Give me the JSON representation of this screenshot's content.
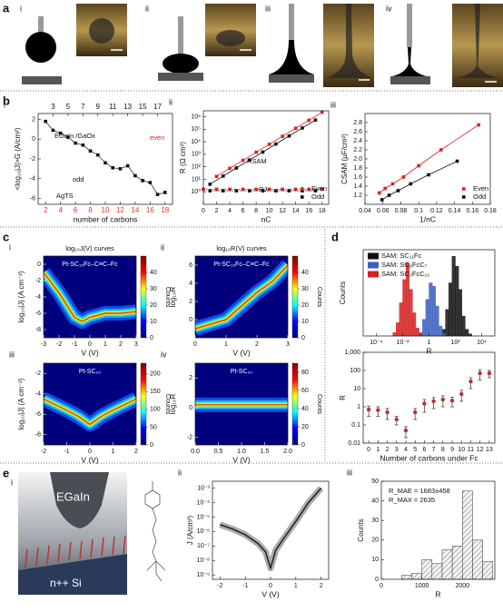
{
  "panels": {
    "a": {
      "label": "a",
      "sub": [
        "i",
        "ii",
        "iii",
        "iv"
      ]
    },
    "b": {
      "label": "b"
    },
    "c": {
      "label": "c"
    },
    "d": {
      "label": "d"
    },
    "e": {
      "label": "e",
      "sub": "i",
      "schematic": [
        "EGaIn",
        "n++ Si"
      ]
    }
  },
  "chart_data": [
    {
      "type": "line",
      "panel": "i",
      "xlabel": "number of carbons",
      "ylabel": "<log₁₀|J|>G (A/cm²)",
      "xlim": [
        1,
        19
      ],
      "ylim": [
        -6.6,
        2.6
      ],
      "xticks": [
        2,
        4,
        6,
        8,
        10,
        12,
        14,
        16,
        18
      ],
      "xtick_color": "#e0302a",
      "x2ticks": [
        3,
        5,
        7,
        9,
        11,
        13,
        15,
        17
      ],
      "yticks": [
        2,
        0,
        -2,
        -4,
        -6
      ],
      "series": [
        {
          "color": "#333333",
          "x": [
            2,
            3,
            4,
            5,
            6,
            7,
            8,
            9,
            10,
            11,
            12,
            13,
            14,
            15,
            16,
            17,
            18
          ],
          "values": [
            1.8,
            0.9,
            0.6,
            0.2,
            -0.4,
            -0.6,
            -1.2,
            -1.6,
            -2.4,
            -2.9,
            -3.0,
            -2.7,
            -3.7,
            -4.2,
            -4.4,
            -5.6,
            -5.4
          ]
        }
      ],
      "annotations": [
        "EGaIn /GaOx",
        "even",
        "odd",
        "AgTS"
      ]
    },
    {
      "type": "line",
      "panel": "ii",
      "xlabel": "nC",
      "ylabel": "R (Ω cm²)",
      "ylog": true,
      "xlim": [
        0,
        19
      ],
      "ylim": [
        0.1,
        3000000
      ],
      "xticks": [
        0,
        2,
        4,
        6,
        8,
        10,
        12,
        14,
        16,
        18
      ],
      "yticks": [
        {
          "value": 1,
          "label": "10⁰"
        },
        {
          "value": 10,
          "label": "10¹"
        },
        {
          "value": 100,
          "label": "10²"
        },
        {
          "value": 1000,
          "label": "10³"
        },
        {
          "value": 10000,
          "label": "10⁴"
        },
        {
          "value": 100000,
          "label": "10⁵"
        },
        {
          "value": 1000000,
          "label": "10⁶"
        }
      ],
      "legend": "lower right",
      "series": [
        {
          "name": "Even",
          "color": "#e02020",
          "x": [
            2,
            4,
            6,
            8,
            10,
            12,
            14,
            16,
            18
          ],
          "values": [
            17,
            76,
            330,
            1450,
            6300,
            27500,
            120000,
            525000,
            2300000
          ]
        },
        {
          "name": "Odd",
          "color": "#111111",
          "x": [
            1,
            3,
            5,
            7,
            9,
            11,
            13,
            15,
            17
          ],
          "values": [
            4,
            18,
            80,
            350,
            1500,
            6600,
            29000,
            126000,
            550000
          ]
        },
        {
          "color": "#e02020",
          "x": [
            0,
            2,
            4,
            6,
            8,
            10,
            12,
            14,
            16,
            18
          ],
          "values": [
            1.6,
            1.6,
            1.6,
            1.6,
            1.6,
            1.6,
            1.6,
            1.6,
            1.6,
            1.6
          ]
        },
        {
          "color": "#111111",
          "x": [
            1,
            3,
            5,
            7,
            9,
            11,
            13,
            15,
            17
          ],
          "values": [
            1.2,
            1.2,
            1.2,
            1.2,
            1.2,
            1.2,
            1.2,
            1.2,
            1.2
          ]
        }
      ],
      "annotations": [
        "RSAM",
        "RJ"
      ]
    },
    {
      "type": "line",
      "panel": "iii",
      "xlabel": "1/nC",
      "ylabel": "CSAM (µF/cm²)",
      "xlim": [
        0.04,
        0.18
      ],
      "ylim": [
        1.0,
        3.0
      ],
      "xticks": [
        0.04,
        0.06,
        0.08,
        0.1,
        0.12,
        0.14,
        0.16,
        0.18
      ],
      "yticks": [
        1.2,
        1.4,
        1.6,
        1.8,
        {
          "value": 2,
          "label": "2.0"
        },
        2.2,
        2.4,
        2.6,
        2.8
      ],
      "legend": "lower right",
      "series": [
        {
          "name": "Even",
          "color": "#e02020",
          "x": [
            0.056,
            0.0625,
            0.071,
            0.083,
            0.1,
            0.125,
            0.167
          ],
          "values": [
            1.25,
            1.35,
            1.45,
            1.6,
            1.85,
            2.2,
            2.75
          ]
        },
        {
          "name": "Odd",
          "color": "#111111",
          "x": [
            0.059,
            0.067,
            0.077,
            0.091,
            0.111,
            0.143
          ],
          "values": [
            1.1,
            1.2,
            1.3,
            1.45,
            1.65,
            1.95
          ]
        }
      ]
    },
    {
      "type": "heatmap",
      "panel": "i",
      "title": "log₁₀J(V) curves",
      "label": "Pt-SC₁₅Fc–C≡C–Fc",
      "xlabel": "V (V)",
      "ylabel": "log₁₀|J| (A cm⁻²)",
      "xlim": [
        -3,
        3
      ],
      "xticks": [
        -3,
        -2,
        -1,
        0,
        1,
        2,
        3
      ],
      "ylim": [
        -9,
        1
      ],
      "yticks": [
        -8,
        -6,
        -4,
        -2,
        0
      ],
      "x": [
        -3,
        -2,
        -1,
        -0.5,
        0,
        1,
        2,
        3
      ],
      "values": [
        -1,
        -3.5,
        -6.5,
        -7,
        -6.5,
        -6,
        -6,
        -5.8
      ],
      "clim": [
        0,
        50
      ],
      "cticks": [
        0,
        10,
        20,
        30,
        40
      ],
      "clabel": "Counts"
    },
    {
      "type": "heatmap",
      "panel": "ii",
      "title": "log₁₀R(V) curves",
      "label": "Pt-SC₁₅Fc–C≡C–Fc",
      "xlabel": "V (V)",
      "ylabel": "log₁₀R",
      "xlim": [
        0,
        3
      ],
      "xticks": [
        0,
        1,
        2,
        3
      ],
      "ylim": [
        -2,
        7
      ],
      "yticks": [
        0,
        2,
        4,
        6
      ],
      "x": [
        0,
        0.5,
        1,
        1.5,
        2,
        2.5,
        3
      ],
      "values": [
        -1,
        -0.5,
        0,
        1.5,
        3,
        4.2,
        6
      ],
      "clim": [
        0,
        50
      ],
      "cticks": [
        0,
        10,
        20,
        30,
        40
      ],
      "clabel": "Counts"
    },
    {
      "type": "heatmap",
      "panel": "iii",
      "label": "Pt-SC₂₀",
      "xlabel": "V (V)",
      "ylabel": "log₁₀|J| (A cm⁻²)",
      "xlim": [
        -2,
        2
      ],
      "xticks": [
        -2,
        -1,
        0,
        1,
        2
      ],
      "ylim": [
        -9,
        -1
      ],
      "yticks": [
        -8,
        -6,
        -4,
        -2
      ],
      "x": [
        -2,
        -1,
        -0.5,
        0,
        0.5,
        1,
        2
      ],
      "values": [
        -4.5,
        -5.6,
        -6.2,
        -7,
        -6.2,
        -5.6,
        -4.5
      ],
      "clim": [
        0,
        230
      ],
      "cticks": [
        0,
        50,
        100,
        150,
        200
      ],
      "clabel": "Counts"
    },
    {
      "type": "heatmap",
      "panel": "iv",
      "label": "Pt-SC₂₀",
      "xlabel": "V (V)",
      "ylabel": "log₁₀R",
      "xlim": [
        0,
        2
      ],
      "xticks": [
        {
          "value": 0,
          "label": "0.0"
        },
        0.5,
        {
          "value": 1,
          "label": "1.0"
        },
        1.5,
        {
          "value": 2,
          "label": "2.0"
        }
      ],
      "ylim": [
        -2.5,
        3
      ],
      "yticks": [
        -2,
        0,
        2
      ],
      "x": [
        0,
        0.5,
        1,
        1.5,
        2
      ],
      "values": [
        0.2,
        0.2,
        0.2,
        0.2,
        0.2
      ],
      "clim": [
        0,
        90
      ],
      "cticks": [
        0,
        20,
        40,
        60,
        80
      ],
      "clabel": "Counts"
    },
    {
      "type": "histogram",
      "xlabel": "R",
      "ylabel": "Counts",
      "xlog": true,
      "xlim": [
        1e-05,
        100000
      ],
      "ylim": [
        0,
        130
      ],
      "xticks": [
        {
          "value": 0.0001,
          "label": "10⁻⁴"
        },
        {
          "value": 0.01,
          "label": "10⁻²"
        },
        1,
        {
          "value": 100,
          "label": "10²"
        },
        {
          "value": 10000,
          "label": "10⁴"
        }
      ],
      "yticks": [],
      "legend": "upper left",
      "series": [
        {
          "name": "SAM: SC₁₁Fc",
          "color": "#111111",
          "bins": [
            10,
            17.8,
            31.6,
            56.2,
            100,
            178,
            316,
            562,
            1000,
            1780
          ],
          "values": [
            10,
            40,
            80,
            120,
            105,
            70,
            30,
            10,
            3
          ]
        },
        {
          "name": "SAM: SC₆FcC₇",
          "color": "#3a5fbf",
          "bins": [
            0.178,
            0.316,
            0.562,
            1,
            1.78,
            3.16,
            5.62,
            10,
            17.8
          ],
          "values": [
            5,
            25,
            55,
            80,
            75,
            45,
            15,
            4
          ]
        },
        {
          "name": "SAM: SC₃FcC₁₀",
          "color": "#d42020",
          "bins": [
            0.00178,
            0.00316,
            0.00562,
            0.01,
            0.0178,
            0.0316,
            0.0562,
            0.1,
            0.178,
            0.316
          ],
          "values": [
            5,
            20,
            50,
            85,
            110,
            70,
            35,
            12,
            4
          ]
        }
      ]
    },
    {
      "type": "errorbar",
      "xlabel": "Number of carbons under Fc",
      "ylabel": "R",
      "ylog": true,
      "xlim": [
        -0.6,
        13.6
      ],
      "xticks": [
        0,
        1,
        2,
        3,
        4,
        5,
        6,
        7,
        8,
        9,
        10,
        11,
        12,
        13
      ],
      "ylim": [
        0.01,
        1000
      ],
      "yticks": [
        0.01,
        0.1,
        1,
        10,
        100,
        {
          "value": 1000,
          "label": "1,000"
        }
      ],
      "series": [
        {
          "color": "#c03030",
          "x": [
            0,
            1,
            2,
            3,
            4,
            5,
            6,
            7,
            8,
            9,
            10,
            11,
            12,
            13
          ],
          "values": [
            0.7,
            0.65,
            0.5,
            0.2,
            0.05,
            0.5,
            1.5,
            2,
            2.5,
            2.2,
            5,
            25,
            70,
            70
          ],
          "errors": [
            0.4,
            0.35,
            0.3,
            0.1,
            0.03,
            0.3,
            1,
            1.2,
            1.5,
            1.2,
            3,
            15,
            40,
            30
          ]
        }
      ]
    },
    {
      "type": "line",
      "panel": "ii",
      "xlabel": "V (V)",
      "ylabel": "J (A/cm²)",
      "ylog": true,
      "xlim": [
        -2.3,
        2.3
      ],
      "xticks": [
        -2,
        -1,
        0,
        1,
        2
      ],
      "ylim": [
        5e-10,
        0.003
      ],
      "yticks": [
        {
          "value": 1e-09,
          "label": "10⁻⁹"
        },
        {
          "value": 1e-08,
          "label": "10⁻⁸"
        },
        {
          "value": 1e-07,
          "label": "10⁻⁷"
        },
        {
          "value": 1e-06,
          "label": "10⁻⁶"
        },
        {
          "value": 1e-05,
          "label": "10⁻⁵"
        },
        {
          "value": 0.0001,
          "label": "10⁻⁴"
        },
        {
          "value": 0.001,
          "label": "10⁻³"
        }
      ],
      "band_color": "#aaaaaa",
      "series": [
        {
          "color": "#111111",
          "x": [
            -2,
            -1.5,
            -1,
            -0.5,
            -0.2,
            0,
            0.2,
            0.5,
            1,
            1.5,
            2
          ],
          "values": [
            3e-06,
            1.5e-06,
            6e-07,
            1.5e-07,
            4e-08,
            3e-09,
            5e-08,
            3e-07,
            5e-06,
            0.0001,
            0.001
          ]
        }
      ]
    },
    {
      "type": "histogram",
      "panel": "iii",
      "xlabel": "R",
      "ylabel": "Counts",
      "xlim": [
        0,
        2800
      ],
      "xticks": [
        0,
        1000,
        2000
      ],
      "ylim": [
        0,
        50
      ],
      "yticks": [
        0,
        10,
        20,
        30,
        40,
        50
      ],
      "hatch": true,
      "series": [
        {
          "color": "#dddddd",
          "bins": [
            500,
            750,
            1000,
            1250,
            1500,
            1750,
            2000,
            2250,
            2500,
            2750
          ],
          "values": [
            2,
            3,
            10,
            8,
            15,
            17,
            45,
            20,
            9
          ]
        }
      ],
      "annotations": [
        "R_MAE = 1683±458",
        "R_MAX = 2635"
      ]
    }
  ]
}
